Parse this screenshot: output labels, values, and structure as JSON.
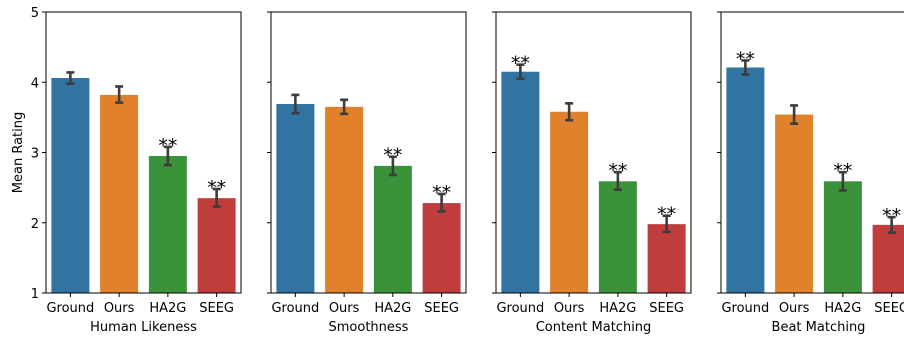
{
  "chart_data": [
    {
      "type": "bar",
      "xlabel": "Human Likeness",
      "ylabel": "Mean Rating",
      "ylim": [
        1,
        5
      ],
      "yticks": [
        1,
        2,
        3,
        4,
        5
      ],
      "categories": [
        "Ground",
        "Ours",
        "HA2G",
        "SEEG"
      ],
      "values": [
        4.06,
        3.82,
        2.95,
        2.35
      ],
      "err_low": [
        3.98,
        3.71,
        2.82,
        2.23
      ],
      "err_high": [
        4.14,
        3.94,
        3.08,
        2.48
      ],
      "annotations": [
        "",
        "",
        "**",
        "**"
      ]
    },
    {
      "type": "bar",
      "xlabel": "Smoothness",
      "ylabel": "",
      "ylim": [
        1,
        5
      ],
      "categories": [
        "Ground",
        "Ours",
        "HA2G",
        "SEEG"
      ],
      "values": [
        3.69,
        3.65,
        2.81,
        2.28
      ],
      "err_low": [
        3.56,
        3.55,
        2.68,
        2.16
      ],
      "err_high": [
        3.82,
        3.75,
        2.94,
        2.41
      ],
      "annotations": [
        "",
        "",
        "**",
        "**"
      ]
    },
    {
      "type": "bar",
      "xlabel": "Content Matching",
      "ylabel": "",
      "ylim": [
        1,
        5
      ],
      "categories": [
        "Ground",
        "Ours",
        "HA2G",
        "SEEG"
      ],
      "values": [
        4.15,
        3.58,
        2.59,
        1.98
      ],
      "err_low": [
        4.05,
        3.46,
        2.47,
        1.87
      ],
      "err_high": [
        4.25,
        3.7,
        2.72,
        2.1
      ],
      "annotations": [
        "**",
        "",
        "**",
        "**"
      ]
    },
    {
      "type": "bar",
      "xlabel": "Beat Matching",
      "ylabel": "",
      "ylim": [
        1,
        5
      ],
      "categories": [
        "Ground",
        "Ours",
        "HA2G",
        "SEEG"
      ],
      "values": [
        4.21,
        3.54,
        2.59,
        1.97
      ],
      "err_low": [
        4.11,
        3.41,
        2.46,
        1.86
      ],
      "err_high": [
        4.31,
        3.67,
        2.72,
        2.08
      ],
      "annotations": [
        "**",
        "",
        "**",
        "**"
      ]
    }
  ],
  "colors": [
    "#3274a1",
    "#e1812c",
    "#3a923a",
    "#c03d3e"
  ],
  "error_color": "#3d3d3d"
}
